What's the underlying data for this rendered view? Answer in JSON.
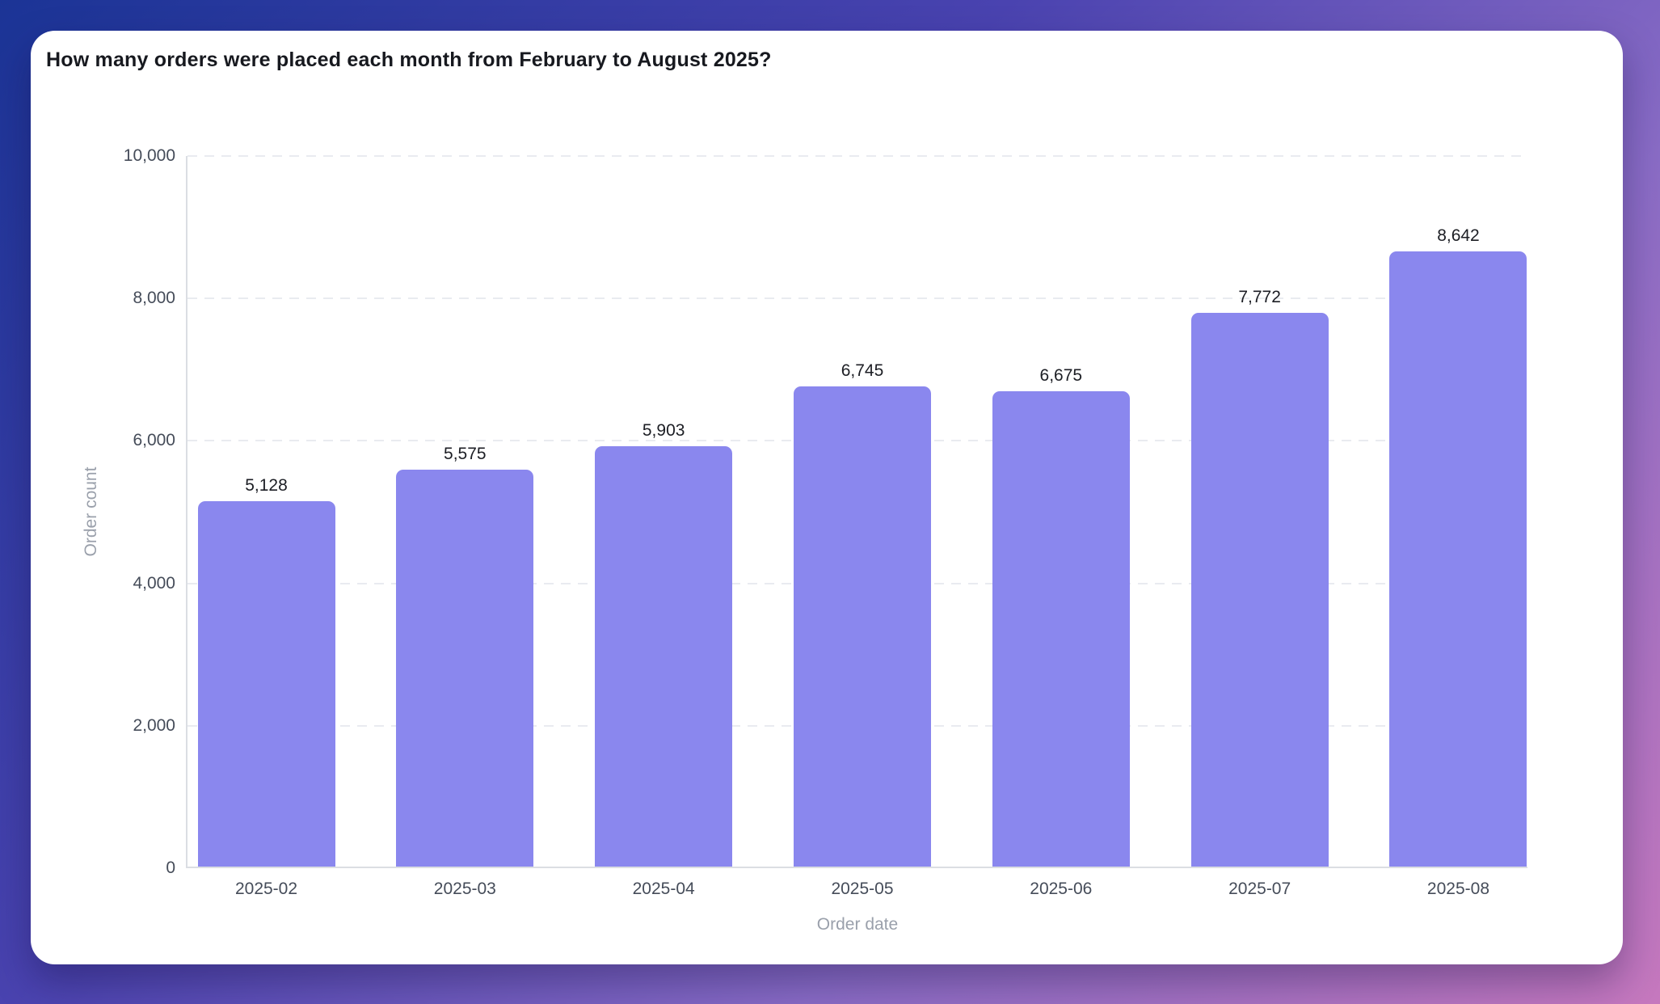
{
  "page": {
    "background_gradient": [
      "#1b3496",
      "#4a43b0",
      "#8a6cc6",
      "#c678be"
    ],
    "card_background": "#ffffff"
  },
  "chart_data": {
    "type": "bar",
    "title": "How many orders were placed each month from February to August 2025?",
    "xlabel": "Order date",
    "ylabel": "Order count",
    "categories": [
      "2025-02",
      "2025-03",
      "2025-04",
      "2025-05",
      "2025-06",
      "2025-07",
      "2025-08"
    ],
    "values": [
      5128,
      5575,
      5903,
      6745,
      6675,
      7772,
      8642
    ],
    "value_labels": [
      "5,128",
      "5,575",
      "5,903",
      "6,745",
      "6,675",
      "7,772",
      "8,642"
    ],
    "ylim": [
      0,
      10000
    ],
    "yticks": [
      0,
      2000,
      4000,
      6000,
      8000,
      10000
    ],
    "ytick_labels": [
      "0",
      "2,000",
      "4,000",
      "6,000",
      "8,000",
      "10,000"
    ],
    "grid": "horizontal-dashed",
    "legend": "none",
    "bar_color": "#8a87ee",
    "value_label_color": "#1c1e24",
    "tick_label_color": "#454c59",
    "axis_title_color": "#9aa0ab"
  }
}
